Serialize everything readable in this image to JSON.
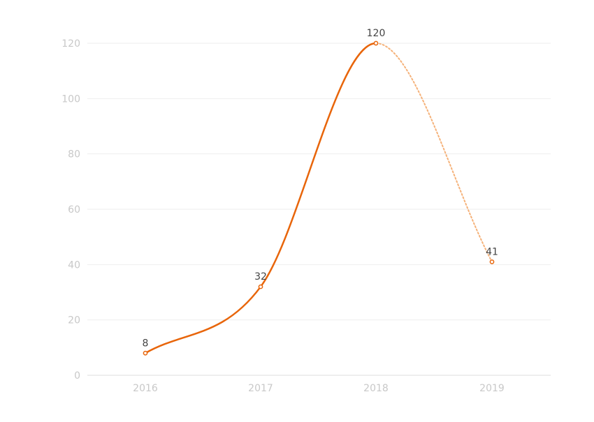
{
  "chart_data": {
    "type": "line",
    "categories": [
      "2016",
      "2017",
      "2018",
      "2019"
    ],
    "values": [
      8,
      32,
      120,
      41
    ],
    "y_ticks": [
      "0",
      "20",
      "40",
      "60",
      "80",
      "100",
      "120"
    ],
    "ylim": [
      0,
      120
    ],
    "grid": true,
    "smooth": true,
    "last_segment_style": "dotted",
    "data_labels": [
      "8",
      "32",
      "120",
      "41"
    ],
    "line_color": "#e8650a",
    "projected_color": "#f5b27a",
    "title": "",
    "xlabel": "",
    "ylabel": ""
  }
}
